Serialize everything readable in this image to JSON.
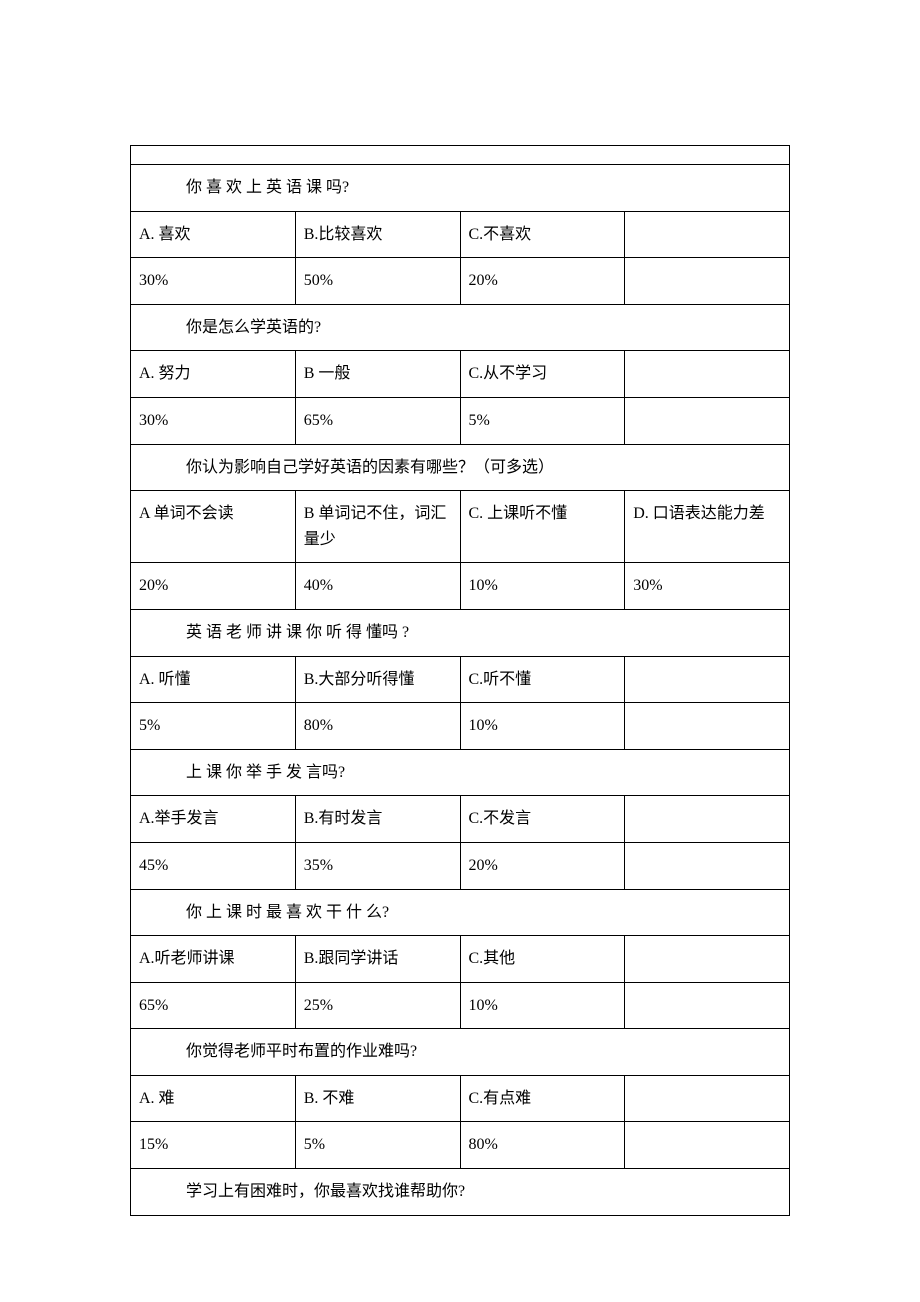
{
  "survey": {
    "questions": [
      {
        "title": "你 喜 欢 上 英 语 课 吗?",
        "spaced": false,
        "options": [
          "A. 喜欢",
          "B.比较喜欢",
          "C.不喜欢",
          ""
        ],
        "percents": [
          "30%",
          "50%",
          "20%",
          ""
        ]
      },
      {
        "title": "你是怎么学英语的?",
        "spaced": false,
        "options": [
          "A. 努力",
          "B 一般",
          "C.从不学习",
          ""
        ],
        "percents": [
          "30%",
          "65%",
          "5%",
          ""
        ]
      },
      {
        "title": "你认为影响自己学好英语的因素有哪些？（可多选）",
        "spaced": false,
        "options": [
          "A 单词不会读",
          "B 单词记不住，词汇量少",
          "C. 上课听不懂",
          "D. 口语表达能力差"
        ],
        "percents": [
          "20%",
          "40%",
          "10%",
          "30%"
        ]
      },
      {
        "title": "英 语 老 师 讲 课 你 听 得 懂吗 ?",
        "spaced": false,
        "options": [
          "A. 听懂",
          "B.大部分听得懂",
          "C.听不懂",
          ""
        ],
        "percents": [
          "5%",
          "80%",
          "10%",
          ""
        ]
      },
      {
        "title": "上 课 你 举 手 发 言吗?",
        "spaced": false,
        "options": [
          "A.举手发言",
          "B.有时发言",
          "C.不发言",
          ""
        ],
        "percents": [
          "45%",
          "35%",
          "20%",
          ""
        ]
      },
      {
        "title": "你 上 课 时 最 喜 欢 干 什 么?",
        "spaced": false,
        "options": [
          "A.听老师讲课",
          "B.跟同学讲话",
          "C.其他",
          ""
        ],
        "percents": [
          "65%",
          "25%",
          "10%",
          ""
        ]
      },
      {
        "title": "你觉得老师平时布置的作业难吗?",
        "spaced": false,
        "options": [
          "A. 难",
          "B. 不难",
          "C.有点难",
          ""
        ],
        "percents": [
          "15%",
          "5%",
          "80%",
          ""
        ]
      },
      {
        "title": "学习上有困难时，你最喜欢找谁帮助你?",
        "spaced": false,
        "options": null,
        "percents": null
      }
    ]
  }
}
